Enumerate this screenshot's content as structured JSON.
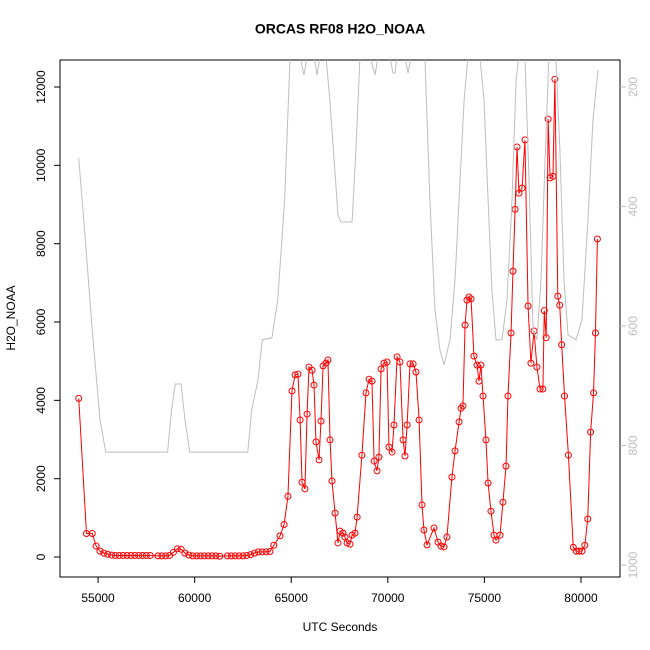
{
  "chart_data": {
    "type": "line",
    "title": "ORCAS RF08 H2O_NOAA",
    "xlabel": "UTC Seconds",
    "ylabel": "H2O_NOAA",
    "xlim": [
      53030,
      82020
    ],
    "xticks": [
      55000,
      60000,
      65000,
      70000,
      75000,
      80000
    ],
    "ylim": [
      -510,
      12690
    ],
    "yticks": [
      0,
      2000,
      4000,
      6000,
      8000,
      10000,
      12000
    ],
    "y2lim": [
      1020,
      155
    ],
    "y2ticks": [
      200,
      400,
      600,
      800,
      1000
    ],
    "series": [
      {
        "name": "H2O_NOAA",
        "color": "#ff0000",
        "x": [
          54000,
          54400,
          54700,
          54900,
          55100,
          55300,
          55500,
          55700,
          55900,
          56100,
          56300,
          56500,
          56700,
          56900,
          57100,
          57300,
          57500,
          57700,
          58100,
          58300,
          58500,
          58700,
          58900,
          59100,
          59300,
          59500,
          59700,
          59900,
          60100,
          60300,
          60500,
          60700,
          60900,
          61100,
          61300,
          61700,
          61900,
          62100,
          62300,
          62500,
          62700,
          62900,
          63100,
          63300,
          63500,
          63700,
          63900,
          64100,
          64420,
          64630,
          64830,
          65040,
          65200,
          65350,
          65460,
          65560,
          65710,
          65820,
          65920,
          66080,
          66180,
          66280,
          66440,
          66540,
          66650,
          66800,
          66900,
          67010,
          67110,
          67270,
          67420,
          67530,
          67680,
          67780,
          67890,
          68040,
          68150,
          68300,
          68410,
          68660,
          68870,
          69030,
          69180,
          69290,
          69440,
          69540,
          69650,
          69800,
          69960,
          70060,
          70220,
          70320,
          70480,
          70630,
          70790,
          70890,
          71000,
          71150,
          71310,
          71460,
          71620,
          71770,
          71870,
          72030,
          72390,
          72600,
          72750,
          72910,
          73060,
          73320,
          73480,
          73690,
          73790,
          73890,
          74000,
          74100,
          74200,
          74310,
          74460,
          74620,
          74720,
          74820,
          74930,
          75080,
          75190,
          75340,
          75500,
          75600,
          75810,
          75960,
          76120,
          76220,
          76380,
          76480,
          76590,
          76690,
          76790,
          76950,
          77100,
          77260,
          77410,
          77570,
          77720,
          77880,
          78030,
          78100,
          78200,
          78300,
          78400,
          78550,
          78650,
          78800,
          78900,
          79000,
          79150,
          79350,
          79600,
          79750,
          79900,
          80050,
          80200,
          80350,
          80500,
          80650,
          80750,
          80850
        ],
        "values": [
          4050,
          600,
          600,
          280,
          150,
          100,
          70,
          50,
          40,
          40,
          40,
          40,
          40,
          40,
          40,
          40,
          40,
          40,
          30,
          30,
          30,
          40,
          120,
          210,
          200,
          100,
          50,
          30,
          30,
          30,
          30,
          30,
          30,
          30,
          20,
          30,
          30,
          30,
          30,
          30,
          40,
          60,
          100,
          130,
          130,
          130,
          140,
          300,
          540,
          830,
          1550,
          4240,
          4650,
          4670,
          3500,
          1910,
          1740,
          3650,
          4850,
          4770,
          4390,
          2940,
          2480,
          3470,
          4880,
          4950,
          5030,
          2990,
          1940,
          1120,
          360,
          660,
          610,
          510,
          360,
          330,
          560,
          610,
          1020,
          2600,
          4190,
          4540,
          4490,
          2450,
          2200,
          2550,
          4800,
          4950,
          4980,
          2810,
          2680,
          3370,
          5110,
          4980,
          2990,
          2580,
          3370,
          4930,
          4930,
          4720,
          3500,
          1330,
          690,
          310,
          740,
          380,
          280,
          260,
          510,
          2040,
          2710,
          3450,
          3800,
          3860,
          5920,
          6560,
          6640,
          6590,
          5130,
          4900,
          4490,
          4900,
          4110,
          2990,
          1890,
          1170,
          560,
          430,
          560,
          1400,
          2320,
          4110,
          5720,
          7300,
          8880,
          10470,
          9290,
          9420,
          10650,
          6410,
          4950,
          5770,
          4850,
          4290,
          4290,
          6290,
          5600,
          11180,
          9680,
          9720,
          12200,
          6660,
          6430,
          5420,
          4110,
          2600,
          250,
          150,
          150,
          150,
          300,
          970,
          3190,
          4190,
          5720,
          8120
        ]
      },
      {
        "color": "#bebebe",
        "axis": "y2",
        "x": [
          54000,
          54300,
          54700,
          55100,
          55400,
          58600,
          58800,
          59000,
          59300,
          59500,
          59750,
          62750,
          62950,
          63280,
          63500,
          64000,
          64300,
          64660,
          64940,
          65460,
          65660,
          65820,
          66180,
          66340,
          66490,
          66800,
          67000,
          67220,
          67420,
          67580,
          68150,
          68350,
          68560,
          69080,
          69340,
          69490,
          70110,
          70270,
          70370,
          70480,
          70890,
          71050,
          71200,
          71920,
          72180,
          72440,
          72700,
          72910,
          73220,
          73480,
          73740,
          73950,
          74150,
          74770,
          74980,
          75190,
          75390,
          75600,
          75910,
          76170,
          76430,
          76640,
          76790,
          77100,
          77310,
          77520,
          77720,
          77930,
          78140,
          78340,
          78700,
          78910,
          79120,
          79330,
          79740,
          80050,
          80360,
          80620,
          80880
        ],
        "values": [
          319,
          439,
          607,
          757,
          811,
          811,
          741,
          697,
          697,
          757,
          811,
          811,
          741,
          690,
          623,
          620,
          557,
          389,
          150,
          150,
          180,
          150,
          150,
          180,
          150,
          150,
          222,
          322,
          414,
          426,
          426,
          305,
          150,
          150,
          180,
          150,
          150,
          177,
          177,
          150,
          150,
          177,
          150,
          150,
          389,
          573,
          640,
          665,
          623,
          523,
          356,
          222,
          150,
          150,
          222,
          389,
          540,
          623,
          623,
          557,
          389,
          188,
          150,
          150,
          356,
          607,
          623,
          523,
          322,
          150,
          150,
          305,
          523,
          615,
          623,
          590,
          423,
          255,
          172
        ]
      }
    ]
  }
}
